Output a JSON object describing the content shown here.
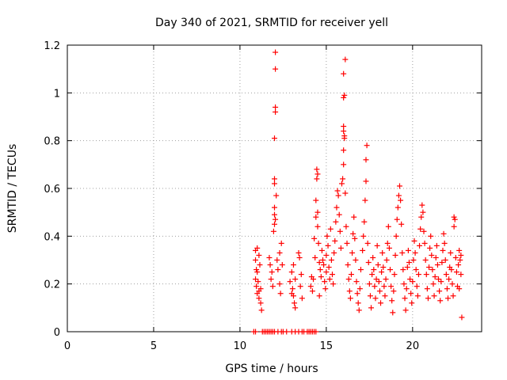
{
  "chart_data": {
    "type": "scatter",
    "title": "Day 340 of 2021, SRMTID for receiver yell",
    "xlabel": "GPS time / hours",
    "ylabel": "SRMTID / TECUs",
    "xlim": [
      0,
      24
    ],
    "ylim": [
      0,
      1.2
    ],
    "xticks": [
      0,
      5,
      10,
      15,
      20
    ],
    "yticks": [
      0,
      0.2,
      0.4,
      0.6,
      0.8,
      1,
      1.2
    ],
    "xtick_labels": [
      "0",
      "5",
      "10",
      "15",
      "20"
    ],
    "ytick_labels": [
      "0",
      "0.2",
      "0.4",
      "0.6",
      "0.8",
      "1",
      "1.2"
    ],
    "grid": true,
    "marker": "+",
    "color": "#ff0000",
    "series": [
      {
        "name": "SRMTID",
        "points": [
          [
            10.8,
            0.0
          ],
          [
            10.9,
            0.0
          ],
          [
            11.3,
            0.0
          ],
          [
            11.4,
            0.0
          ],
          [
            11.5,
            0.0
          ],
          [
            11.6,
            0.0
          ],
          [
            11.7,
            0.0
          ],
          [
            11.8,
            0.0
          ],
          [
            11.9,
            0.0
          ],
          [
            12.0,
            0.0
          ],
          [
            12.2,
            0.0
          ],
          [
            12.4,
            0.0
          ],
          [
            12.5,
            0.0
          ],
          [
            12.7,
            0.0
          ],
          [
            13.0,
            0.0
          ],
          [
            13.2,
            0.0
          ],
          [
            13.4,
            0.0
          ],
          [
            13.6,
            0.0
          ],
          [
            13.7,
            0.0
          ],
          [
            13.9,
            0.0
          ],
          [
            14.0,
            0.0
          ],
          [
            14.1,
            0.0
          ],
          [
            14.2,
            0.0
          ],
          [
            14.3,
            0.0
          ],
          [
            14.4,
            0.0
          ],
          [
            10.9,
            0.34
          ],
          [
            10.9,
            0.3
          ],
          [
            10.95,
            0.26
          ],
          [
            10.9,
            0.22
          ],
          [
            10.95,
            0.19
          ],
          [
            11.0,
            0.16
          ],
          [
            11.0,
            0.25
          ],
          [
            11.05,
            0.21
          ],
          [
            11.1,
            0.17
          ],
          [
            11.1,
            0.14
          ],
          [
            11.15,
            0.28
          ],
          [
            11.2,
            0.18
          ],
          [
            11.2,
            0.12
          ],
          [
            11.25,
            0.09
          ],
          [
            11.1,
            0.32
          ],
          [
            11.0,
            0.35
          ],
          [
            11.7,
            0.31
          ],
          [
            11.75,
            0.28
          ],
          [
            11.8,
            0.22
          ],
          [
            11.85,
            0.25
          ],
          [
            11.9,
            0.19
          ],
          [
            11.95,
            0.42
          ],
          [
            12.0,
            0.45
          ],
          [
            12.0,
            0.49
          ],
          [
            12.0,
            0.52
          ],
          [
            12.05,
            0.47
          ],
          [
            12.0,
            0.62
          ],
          [
            12.0,
            0.64
          ],
          [
            12.0,
            0.81
          ],
          [
            12.05,
            0.92
          ],
          [
            12.05,
            0.94
          ],
          [
            12.05,
            1.1
          ],
          [
            12.05,
            1.17
          ],
          [
            12.1,
            0.57
          ],
          [
            12.15,
            0.3
          ],
          [
            12.2,
            0.26
          ],
          [
            12.3,
            0.33
          ],
          [
            12.3,
            0.2
          ],
          [
            12.35,
            0.16
          ],
          [
            12.4,
            0.37
          ],
          [
            12.45,
            0.28
          ],
          [
            12.9,
            0.21
          ],
          [
            13.0,
            0.25
          ],
          [
            13.05,
            0.18
          ],
          [
            13.1,
            0.15
          ],
          [
            13.15,
            0.12
          ],
          [
            13.2,
            0.1
          ],
          [
            13.1,
            0.28
          ],
          [
            13.2,
            0.22
          ],
          [
            13.0,
            0.16
          ],
          [
            13.4,
            0.33
          ],
          [
            13.45,
            0.31
          ],
          [
            13.5,
            0.19
          ],
          [
            13.55,
            0.24
          ],
          [
            13.6,
            0.14
          ],
          [
            14.1,
            0.19
          ],
          [
            14.15,
            0.23
          ],
          [
            14.2,
            0.17
          ],
          [
            14.25,
            0.22
          ],
          [
            14.3,
            0.39
          ],
          [
            14.35,
            0.31
          ],
          [
            14.4,
            0.48
          ],
          [
            14.4,
            0.55
          ],
          [
            14.45,
            0.64
          ],
          [
            14.45,
            0.68
          ],
          [
            14.5,
            0.66
          ],
          [
            14.5,
            0.5
          ],
          [
            14.5,
            0.44
          ],
          [
            14.55,
            0.37
          ],
          [
            14.6,
            0.29
          ],
          [
            14.6,
            0.15
          ],
          [
            14.65,
            0.26
          ],
          [
            14.7,
            0.23
          ],
          [
            14.75,
            0.34
          ],
          [
            14.8,
            0.3
          ],
          [
            14.85,
            0.28
          ],
          [
            14.9,
            0.21
          ],
          [
            14.95,
            0.18
          ],
          [
            15.0,
            0.25
          ],
          [
            15.0,
            0.32
          ],
          [
            15.05,
            0.4
          ],
          [
            15.1,
            0.36
          ],
          [
            15.15,
            0.27
          ],
          [
            15.2,
            0.22
          ],
          [
            15.25,
            0.43
          ],
          [
            15.3,
            0.3
          ],
          [
            15.35,
            0.24
          ],
          [
            15.4,
            0.2
          ],
          [
            15.45,
            0.33
          ],
          [
            15.5,
            0.38
          ],
          [
            15.55,
            0.46
          ],
          [
            15.6,
            0.52
          ],
          [
            15.65,
            0.59
          ],
          [
            15.7,
            0.57
          ],
          [
            15.75,
            0.49
          ],
          [
            15.8,
            0.42
          ],
          [
            15.85,
            0.35
          ],
          [
            15.9,
            0.62
          ],
          [
            15.95,
            0.64
          ],
          [
            16.0,
            0.7
          ],
          [
            16.0,
            0.76
          ],
          [
            16.0,
            0.84
          ],
          [
            16.0,
            0.86
          ],
          [
            16.05,
            0.81
          ],
          [
            16.05,
            0.82
          ],
          [
            16.0,
            0.98
          ],
          [
            16.05,
            0.99
          ],
          [
            16.0,
            1.08
          ],
          [
            16.1,
            1.14
          ],
          [
            16.1,
            0.58
          ],
          [
            16.15,
            0.44
          ],
          [
            16.2,
            0.37
          ],
          [
            16.25,
            0.28
          ],
          [
            16.3,
            0.22
          ],
          [
            16.35,
            0.17
          ],
          [
            16.4,
            0.14
          ],
          [
            16.45,
            0.24
          ],
          [
            16.5,
            0.33
          ],
          [
            16.55,
            0.41
          ],
          [
            16.6,
            0.48
          ],
          [
            16.65,
            0.39
          ],
          [
            16.7,
            0.3
          ],
          [
            16.75,
            0.21
          ],
          [
            16.8,
            0.16
          ],
          [
            16.85,
            0.12
          ],
          [
            16.9,
            0.09
          ],
          [
            16.95,
            0.18
          ],
          [
            17.0,
            0.26
          ],
          [
            17.1,
            0.34
          ],
          [
            17.15,
            0.4
          ],
          [
            17.2,
            0.46
          ],
          [
            17.25,
            0.55
          ],
          [
            17.3,
            0.63
          ],
          [
            17.3,
            0.72
          ],
          [
            17.35,
            0.78
          ],
          [
            17.4,
            0.37
          ],
          [
            17.45,
            0.29
          ],
          [
            17.5,
            0.2
          ],
          [
            17.55,
            0.15
          ],
          [
            17.6,
            0.1
          ],
          [
            17.65,
            0.24
          ],
          [
            17.7,
            0.31
          ],
          [
            17.75,
            0.26
          ],
          [
            17.8,
            0.19
          ],
          [
            17.85,
            0.14
          ],
          [
            17.9,
            0.22
          ],
          [
            17.95,
            0.36
          ],
          [
            18.0,
            0.28
          ],
          [
            18.05,
            0.21
          ],
          [
            18.1,
            0.17
          ],
          [
            18.15,
            0.12
          ],
          [
            18.2,
            0.25
          ],
          [
            18.25,
            0.33
          ],
          [
            18.3,
            0.27
          ],
          [
            18.35,
            0.19
          ],
          [
            18.4,
            0.15
          ],
          [
            18.45,
            0.22
          ],
          [
            18.5,
            0.3
          ],
          [
            18.55,
            0.37
          ],
          [
            18.6,
            0.44
          ],
          [
            18.65,
            0.35
          ],
          [
            18.7,
            0.26
          ],
          [
            18.75,
            0.19
          ],
          [
            18.8,
            0.13
          ],
          [
            18.85,
            0.08
          ],
          [
            18.9,
            0.17
          ],
          [
            18.95,
            0.24
          ],
          [
            19.0,
            0.32
          ],
          [
            19.05,
            0.4
          ],
          [
            19.1,
            0.47
          ],
          [
            19.15,
            0.52
          ],
          [
            19.2,
            0.57
          ],
          [
            19.25,
            0.61
          ],
          [
            19.3,
            0.55
          ],
          [
            19.35,
            0.45
          ],
          [
            19.4,
            0.33
          ],
          [
            19.45,
            0.26
          ],
          [
            19.5,
            0.2
          ],
          [
            19.55,
            0.14
          ],
          [
            19.6,
            0.09
          ],
          [
            19.65,
            0.18
          ],
          [
            19.7,
            0.27
          ],
          [
            19.75,
            0.34
          ],
          [
            19.8,
            0.29
          ],
          [
            19.85,
            0.22
          ],
          [
            19.9,
            0.16
          ],
          [
            19.95,
            0.12
          ],
          [
            20.0,
            0.21
          ],
          [
            20.05,
            0.3
          ],
          [
            20.1,
            0.38
          ],
          [
            20.15,
            0.33
          ],
          [
            20.2,
            0.26
          ],
          [
            20.25,
            0.19
          ],
          [
            20.3,
            0.15
          ],
          [
            20.35,
            0.24
          ],
          [
            20.4,
            0.36
          ],
          [
            20.45,
            0.43
          ],
          [
            20.5,
            0.48
          ],
          [
            20.55,
            0.53
          ],
          [
            20.6,
            0.5
          ],
          [
            20.65,
            0.42
          ],
          [
            20.7,
            0.37
          ],
          [
            20.75,
            0.3
          ],
          [
            20.8,
            0.24
          ],
          [
            20.85,
            0.18
          ],
          [
            20.9,
            0.14
          ],
          [
            20.95,
            0.27
          ],
          [
            21.0,
            0.35
          ],
          [
            21.05,
            0.4
          ],
          [
            21.1,
            0.32
          ],
          [
            21.15,
            0.26
          ],
          [
            21.2,
            0.2
          ],
          [
            21.25,
            0.15
          ],
          [
            21.3,
            0.23
          ],
          [
            21.35,
            0.31
          ],
          [
            21.4,
            0.36
          ],
          [
            21.45,
            0.28
          ],
          [
            21.5,
            0.22
          ],
          [
            21.55,
            0.17
          ],
          [
            21.6,
            0.13
          ],
          [
            21.65,
            0.21
          ],
          [
            21.7,
            0.29
          ],
          [
            21.75,
            0.34
          ],
          [
            21.8,
            0.41
          ],
          [
            21.85,
            0.37
          ],
          [
            21.9,
            0.3
          ],
          [
            21.95,
            0.24
          ],
          [
            22.0,
            0.18
          ],
          [
            22.05,
            0.14
          ],
          [
            22.1,
            0.22
          ],
          [
            22.15,
            0.27
          ],
          [
            22.2,
            0.33
          ],
          [
            22.25,
            0.26
          ],
          [
            22.3,
            0.2
          ],
          [
            22.35,
            0.15
          ],
          [
            22.4,
            0.44
          ],
          [
            22.45,
            0.47
          ],
          [
            22.4,
            0.48
          ],
          [
            22.5,
            0.31
          ],
          [
            22.55,
            0.25
          ],
          [
            22.6,
            0.19
          ],
          [
            22.65,
            0.28
          ],
          [
            22.7,
            0.34
          ],
          [
            22.75,
            0.3
          ],
          [
            22.8,
            0.24
          ],
          [
            22.85,
            0.06
          ],
          [
            22.7,
            0.18
          ],
          [
            22.8,
            0.32
          ]
        ]
      }
    ]
  }
}
